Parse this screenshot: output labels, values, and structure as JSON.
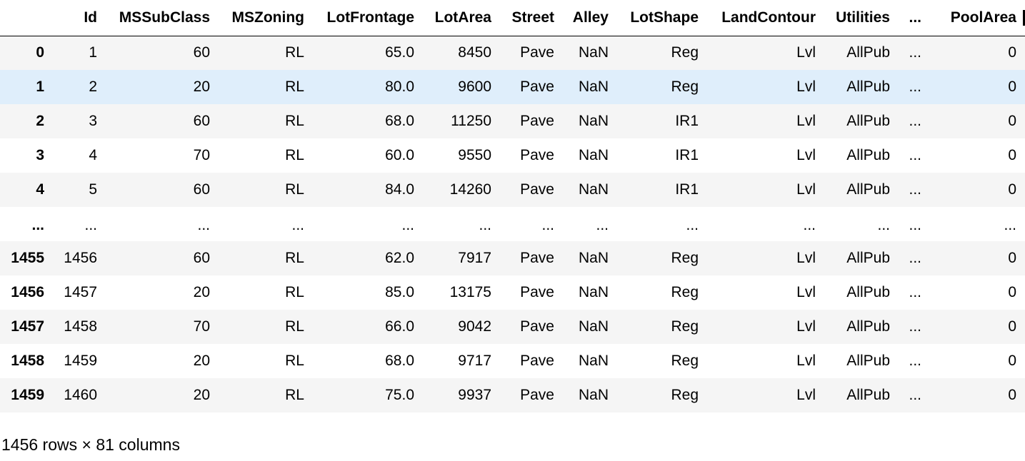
{
  "table": {
    "columns": [
      "",
      "Id",
      "MSSubClass",
      "MSZoning",
      "LotFrontage",
      "LotArea",
      "Street",
      "Alley",
      "LotShape",
      "LandContour",
      "Utilities",
      "...",
      "PoolArea"
    ],
    "rows": [
      {
        "index": "0",
        "cells": [
          "1",
          "60",
          "RL",
          "65.0",
          "8450",
          "Pave",
          "NaN",
          "Reg",
          "Lvl",
          "AllPub",
          "...",
          "0"
        ],
        "style": "odd"
      },
      {
        "index": "1",
        "cells": [
          "2",
          "20",
          "RL",
          "80.0",
          "9600",
          "Pave",
          "NaN",
          "Reg",
          "Lvl",
          "AllPub",
          "...",
          "0"
        ],
        "style": "hover"
      },
      {
        "index": "2",
        "cells": [
          "3",
          "60",
          "RL",
          "68.0",
          "11250",
          "Pave",
          "NaN",
          "IR1",
          "Lvl",
          "AllPub",
          "...",
          "0"
        ],
        "style": "odd"
      },
      {
        "index": "3",
        "cells": [
          "4",
          "70",
          "RL",
          "60.0",
          "9550",
          "Pave",
          "NaN",
          "IR1",
          "Lvl",
          "AllPub",
          "...",
          "0"
        ],
        "style": "even"
      },
      {
        "index": "4",
        "cells": [
          "5",
          "60",
          "RL",
          "84.0",
          "14260",
          "Pave",
          "NaN",
          "IR1",
          "Lvl",
          "AllPub",
          "...",
          "0"
        ],
        "style": "odd"
      },
      {
        "index": "...",
        "cells": [
          "...",
          "...",
          "...",
          "...",
          "...",
          "...",
          "...",
          "...",
          "...",
          "...",
          "...",
          "..."
        ],
        "style": "even",
        "ellipsis": true
      },
      {
        "index": "1455",
        "cells": [
          "1456",
          "60",
          "RL",
          "62.0",
          "7917",
          "Pave",
          "NaN",
          "Reg",
          "Lvl",
          "AllPub",
          "...",
          "0"
        ],
        "style": "odd"
      },
      {
        "index": "1456",
        "cells": [
          "1457",
          "20",
          "RL",
          "85.0",
          "13175",
          "Pave",
          "NaN",
          "Reg",
          "Lvl",
          "AllPub",
          "...",
          "0"
        ],
        "style": "even"
      },
      {
        "index": "1457",
        "cells": [
          "1458",
          "70",
          "RL",
          "66.0",
          "9042",
          "Pave",
          "NaN",
          "Reg",
          "Lvl",
          "AllPub",
          "...",
          "0"
        ],
        "style": "odd"
      },
      {
        "index": "1458",
        "cells": [
          "1459",
          "20",
          "RL",
          "68.0",
          "9717",
          "Pave",
          "NaN",
          "Reg",
          "Lvl",
          "AllPub",
          "...",
          "0"
        ],
        "style": "even"
      },
      {
        "index": "1459",
        "cells": [
          "1460",
          "20",
          "RL",
          "75.0",
          "9937",
          "Pave",
          "NaN",
          "Reg",
          "Lvl",
          "AllPub",
          "...",
          "0"
        ],
        "style": "odd"
      }
    ]
  },
  "caption": "1456 rows × 81 columns",
  "colors": {
    "odd_row": "#f5f5f5",
    "even_row": "#ffffff",
    "hover_row": "#dfeefb",
    "text": "#000000"
  }
}
